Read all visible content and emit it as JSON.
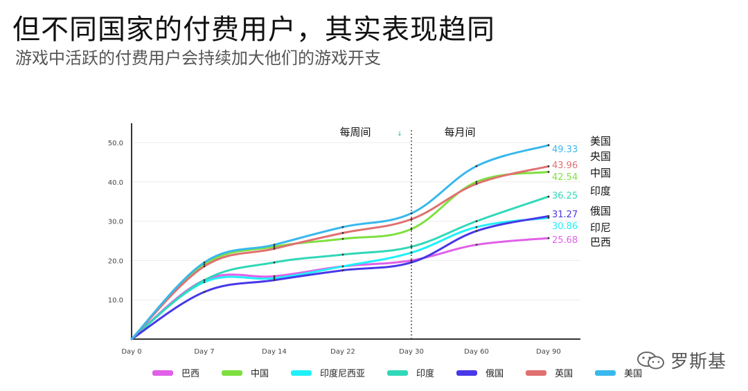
{
  "header": {
    "title": "但不同国家的付费用户，其实表现趋同",
    "subtitle": "游戏中活跃的付费用户会持续加大他们的游戏开支"
  },
  "watermark": {
    "text": "罗斯基",
    "icon": "wechat-icon"
  },
  "chart_data": {
    "type": "line",
    "x": [
      "Day 0",
      "Day 7",
      "Day 14",
      "Day 22",
      "Day 30",
      "Day 60",
      "Day 90"
    ],
    "ylim": [
      0,
      55
    ],
    "yticks": [
      10.0,
      20.0,
      30.0,
      40.0,
      50.0
    ],
    "ytick_labels": [
      "10.0",
      "20.0",
      "30.0",
      "40.0",
      "50.0"
    ],
    "grid": true,
    "regions": {
      "weekly": "每周间",
      "monthly": "每月间",
      "divider_after": "Day 30",
      "marker": "↓"
    },
    "legend_position": "bottom",
    "series": [
      {
        "name": "巴西",
        "end_label": "巴西",
        "color": "#e060e8",
        "values": [
          0,
          15.0,
          16.0,
          18.5,
          20.0,
          24.0,
          25.68
        ],
        "end_value": "25.68"
      },
      {
        "name": "中国",
        "end_label": "中国",
        "color": "#7ee040",
        "values": [
          0,
          19.0,
          23.5,
          25.5,
          28.0,
          40.0,
          42.54
        ],
        "end_value": "42.54"
      },
      {
        "name": "印度尼西亚",
        "end_label": "印尼",
        "color": "#20f0f8",
        "values": [
          0,
          14.5,
          15.5,
          18.5,
          22.0,
          28.5,
          30.86
        ],
        "end_value": "30.86"
      },
      {
        "name": "印度",
        "end_label": "印度",
        "color": "#30d8b8",
        "values": [
          0,
          15.0,
          19.5,
          21.5,
          23.5,
          30.0,
          36.25
        ],
        "end_value": "36.25"
      },
      {
        "name": "俄国",
        "end_label": "俄国",
        "color": "#4838e8",
        "values": [
          0,
          12.0,
          15.0,
          17.5,
          19.5,
          27.5,
          31.27
        ],
        "end_value": "31.27"
      },
      {
        "name": "英国",
        "end_label": "央国",
        "color": "#e07070",
        "values": [
          0,
          18.5,
          23.0,
          27.0,
          30.5,
          39.5,
          43.96
        ],
        "end_value": "43.96"
      },
      {
        "name": "美国",
        "end_label": "美国",
        "color": "#38b8ec",
        "values": [
          0,
          19.5,
          24.0,
          28.5,
          32.0,
          44.0,
          49.33
        ],
        "end_value": "49.33"
      }
    ],
    "legend_order": [
      0,
      1,
      2,
      3,
      4,
      5,
      6
    ],
    "end_label_order": [
      6,
      5,
      1,
      3,
      4,
      2,
      0
    ]
  }
}
